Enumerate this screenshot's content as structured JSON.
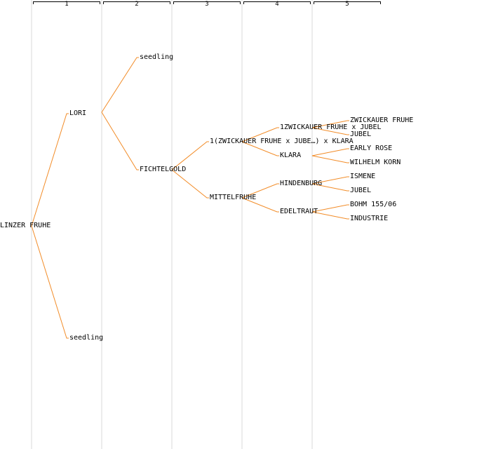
{
  "colors": {
    "link": "#f28c28",
    "column_line": "#ececec"
  },
  "generations": [
    "1",
    "2",
    "3",
    "4",
    "5"
  ],
  "nodes": {
    "root": "LINZER FRUHE",
    "g1_lori": "LORI",
    "g1_seedling": "seedling",
    "g2_seedling": "seedling",
    "g2_fichtelgold": "FICHTELGOLD",
    "g3_cross": "1(ZWICKAUER FRUHE x JUBE…) x KLARA",
    "g3_mittelfruhe": "MITTELFRUHE",
    "g4_zwickauer_cross": "1ZWICKAUER FRUHE x JUBEL",
    "g4_klara": "KLARA",
    "g4_hindenburg": "HINDENBURG",
    "g4_edeltraut": "EDELTRAUT",
    "g5_zwickauer": "ZWICKAUER FRUHE",
    "g5_jubel_1": "JUBEL",
    "g5_early_rose": "EARLY ROSE",
    "g5_wilhelm_korn": "WILHELM KORN",
    "g5_ismene": "ISMENE",
    "g5_jubel_2": "JUBEL",
    "g5_bohm": "BOHM 155/06",
    "g5_industrie": "INDUSTRIE"
  }
}
